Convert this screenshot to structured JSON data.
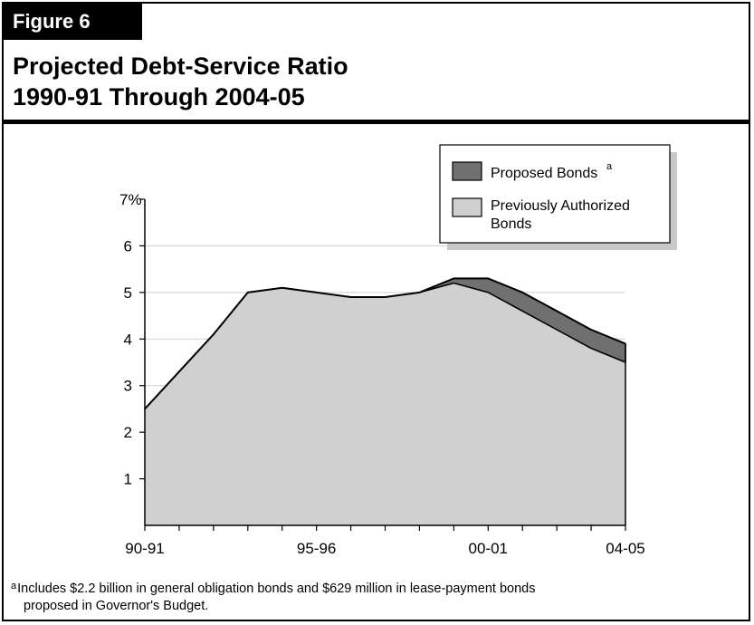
{
  "figure_label": "Figure 6",
  "title_line1": "Projected Debt-Service Ratio",
  "title_line2": "1990-91 Through 2004-05",
  "footnote": {
    "marker": "a",
    "line1": "Includes $2.2 billion in general obligation bonds and $629 million in lease-payment bonds",
    "line2": "proposed in Governor's Budget."
  },
  "chart_data": {
    "type": "area",
    "stacked": true,
    "x": [
      "90-91",
      "91-92",
      "92-93",
      "93-94",
      "94-95",
      "95-96",
      "96-97",
      "97-98",
      "98-99",
      "99-00",
      "00-01",
      "01-02",
      "02-03",
      "03-04",
      "04-05"
    ],
    "x_tick_labels": [
      "90-91",
      "95-96",
      "00-01",
      "04-05"
    ],
    "y_tick_labels": [
      "1",
      "2",
      "3",
      "4",
      "5",
      "6",
      "7%"
    ],
    "ylim": [
      0,
      7
    ],
    "grid": true,
    "legend_position": "top-right",
    "legend_marker": "a",
    "series": [
      {
        "name": "Previously Authorized Bonds",
        "color": "#d0d0d0",
        "values": [
          2.5,
          3.3,
          4.1,
          5.0,
          5.1,
          5.0,
          4.9,
          4.9,
          5.0,
          5.2,
          5.0,
          4.6,
          4.2,
          3.8,
          3.5
        ]
      },
      {
        "name": "Proposed Bonds",
        "color": "#707070",
        "values": [
          0,
          0,
          0,
          0,
          0,
          0,
          0,
          0,
          0,
          0.1,
          0.3,
          0.4,
          0.4,
          0.4,
          0.4
        ]
      }
    ]
  }
}
